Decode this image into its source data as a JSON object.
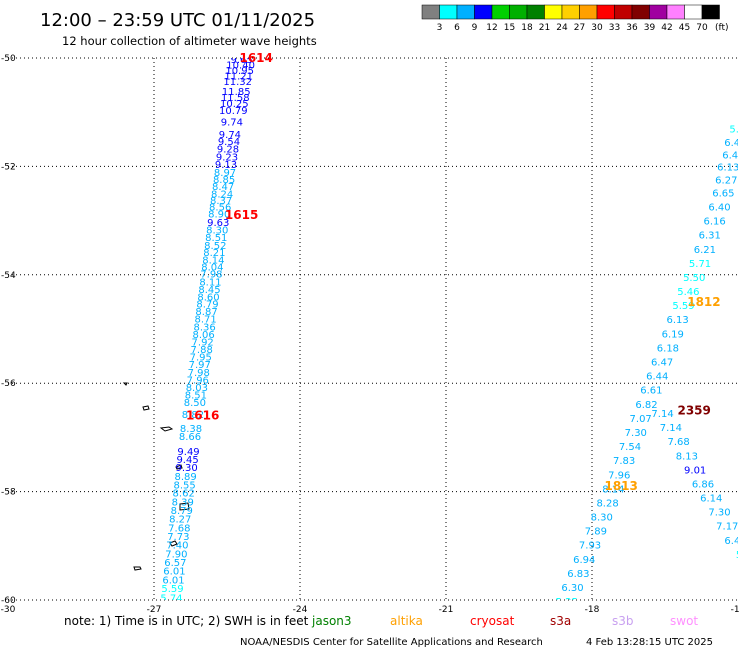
{
  "title": "12:00 – 23:59 UTC 01/11/2025",
  "subtitle": "12 hour collection of altimeter wave heights",
  "colorbar": {
    "labels": [
      "3",
      "6",
      "9",
      "12",
      "15",
      "18",
      "21",
      "24",
      "27",
      "30",
      "33",
      "36",
      "39",
      "42",
      "45",
      "70"
    ],
    "unit": "(ft)",
    "colors": [
      "#808080",
      "#00ffff",
      "#00b0ff",
      "#0000ff",
      "#00d000",
      "#00b000",
      "#008000",
      "#ffff00",
      "#ffd000",
      "#ffa000",
      "#ff0000",
      "#c00000",
      "#800000",
      "#a000a0",
      "#ff80ff",
      "#ffffff",
      "#000000"
    ]
  },
  "note": "note: 1) Time is in UTC; 2) SWH is in feet",
  "credit": "NOAA/NESDIS Center for Satellite Applications and Research",
  "timestamp": "4 Feb 13:28:15 UTC 2025",
  "satellites": [
    {
      "name": "jason3",
      "label": "jason3",
      "color": "#008000"
    },
    {
      "name": "altika",
      "label": "altika",
      "color": "#ffa000"
    },
    {
      "name": "cryosat",
      "label": "cryosat",
      "color": "#ff0000"
    },
    {
      "name": "s3a",
      "label": "s3a",
      "color": "#a00000"
    },
    {
      "name": "s3b",
      "label": "s3b",
      "color": "#c8a0f0"
    },
    {
      "name": "swot",
      "label": "swot",
      "color": "#ff90ff"
    }
  ],
  "chart_data": {
    "type": "scatter",
    "xlim": [
      -30,
      -15
    ],
    "ylim": [
      -60,
      -50
    ],
    "x_ticks": [
      -30,
      -27,
      -24,
      -21,
      -18,
      -15
    ],
    "y_ticks": [
      -50,
      -52,
      -54,
      -56,
      -58,
      -60
    ],
    "x_tick_labels": [
      "-30",
      "-27",
      "-24",
      "-21",
      "-18",
      "-15"
    ],
    "y_tick_labels": [
      "-50",
      "-52",
      "-54",
      "-56",
      "-58",
      "-60"
    ],
    "grid": true,
    "pass_labels": [
      {
        "text": "1614",
        "x": -24.9,
        "y": -50.0,
        "color": "#ff0000"
      },
      {
        "text": "1615",
        "x": -25.2,
        "y": -52.9,
        "color": "#ff0000"
      },
      {
        "text": "1616",
        "x": -26.0,
        "y": -56.6,
        "color": "#ff0000"
      },
      {
        "text": "1812",
        "x": -15.7,
        "y": -54.5,
        "color": "#ffa000"
      },
      {
        "text": "1813",
        "x": -17.4,
        "y": -57.9,
        "color": "#ffa000"
      },
      {
        "text": "2359",
        "x": -15.9,
        "y": -56.5,
        "color": "#800000"
      }
    ],
    "series": [
      {
        "name": "1614/1615/1616",
        "points": [
          {
            "x": -25.2,
            "y": -50.02,
            "v": "9.65",
            "c": "#0000ff"
          },
          {
            "x": -25.22,
            "y": -50.12,
            "v": "10.40",
            "c": "#0000ff"
          },
          {
            "x": -25.24,
            "y": -50.22,
            "v": "10.95",
            "c": "#0000ff"
          },
          {
            "x": -25.26,
            "y": -50.32,
            "v": "11.21",
            "c": "#0000ff"
          },
          {
            "x": -25.28,
            "y": -50.42,
            "v": "11.32",
            "c": "#0000ff"
          },
          {
            "x": -25.31,
            "y": -50.61,
            "v": "11.85",
            "c": "#0000ff"
          },
          {
            "x": -25.33,
            "y": -50.72,
            "v": "11.58",
            "c": "#0000ff"
          },
          {
            "x": -25.35,
            "y": -50.83,
            "v": "10.25",
            "c": "#0000ff"
          },
          {
            "x": -25.37,
            "y": -50.96,
            "v": "10.79",
            "c": "#0000ff"
          },
          {
            "x": -25.4,
            "y": -51.17,
            "v": "9.74",
            "c": "#0000ff"
          },
          {
            "x": -25.44,
            "y": -51.4,
            "v": "9.74",
            "c": "#0000ff"
          },
          {
            "x": -25.46,
            "y": -51.53,
            "v": "9.54",
            "c": "#0000ff"
          },
          {
            "x": -25.48,
            "y": -51.67,
            "v": "9.28",
            "c": "#0000ff"
          },
          {
            "x": -25.5,
            "y": -51.82,
            "v": "9.23",
            "c": "#0000ff"
          },
          {
            "x": -25.52,
            "y": -51.96,
            "v": "9.13",
            "c": "#0000ff"
          },
          {
            "x": -25.54,
            "y": -52.1,
            "v": "8.97",
            "c": "#00b0ff"
          },
          {
            "x": -25.56,
            "y": -52.23,
            "v": "8.85",
            "c": "#00b0ff"
          },
          {
            "x": -25.58,
            "y": -52.36,
            "v": "8.47",
            "c": "#00b0ff"
          },
          {
            "x": -25.6,
            "y": -52.5,
            "v": "8.24",
            "c": "#00b0ff"
          },
          {
            "x": -25.62,
            "y": -52.62,
            "v": "8.37",
            "c": "#00b0ff"
          },
          {
            "x": -25.64,
            "y": -52.74,
            "v": "8.56",
            "c": "#00b0ff"
          },
          {
            "x": -25.66,
            "y": -52.87,
            "v": "8.90",
            "c": "#00b0ff"
          },
          {
            "x": -25.68,
            "y": -53.03,
            "v": "9.63",
            "c": "#0000ff"
          },
          {
            "x": -25.7,
            "y": -53.16,
            "v": "8.30",
            "c": "#00b0ff"
          },
          {
            "x": -25.72,
            "y": -53.3,
            "v": "8.51",
            "c": "#00b0ff"
          },
          {
            "x": -25.74,
            "y": -53.45,
            "v": "8.52",
            "c": "#00b0ff"
          },
          {
            "x": -25.76,
            "y": -53.58,
            "v": "8.21",
            "c": "#00b0ff"
          },
          {
            "x": -25.78,
            "y": -53.72,
            "v": "8.14",
            "c": "#00b0ff"
          },
          {
            "x": -25.8,
            "y": -53.85,
            "v": "8.04",
            "c": "#00b0ff"
          },
          {
            "x": -25.82,
            "y": -53.98,
            "v": "7.98",
            "c": "#00b0ff"
          },
          {
            "x": -25.84,
            "y": -54.12,
            "v": "8.11",
            "c": "#00b0ff"
          },
          {
            "x": -25.86,
            "y": -54.26,
            "v": "8.45",
            "c": "#00b0ff"
          },
          {
            "x": -25.88,
            "y": -54.4,
            "v": "8.60",
            "c": "#00b0ff"
          },
          {
            "x": -25.9,
            "y": -54.53,
            "v": "8.79",
            "c": "#00b0ff"
          },
          {
            "x": -25.92,
            "y": -54.67,
            "v": "8.87",
            "c": "#00b0ff"
          },
          {
            "x": -25.94,
            "y": -54.81,
            "v": "8.71",
            "c": "#00b0ff"
          },
          {
            "x": -25.96,
            "y": -54.95,
            "v": "8.36",
            "c": "#00b0ff"
          },
          {
            "x": -25.98,
            "y": -55.09,
            "v": "8.06",
            "c": "#00b0ff"
          },
          {
            "x": -26.0,
            "y": -55.23,
            "v": "7.92",
            "c": "#00b0ff"
          },
          {
            "x": -26.02,
            "y": -55.37,
            "v": "7.88",
            "c": "#00b0ff"
          },
          {
            "x": -26.04,
            "y": -55.51,
            "v": "7.95",
            "c": "#00b0ff"
          },
          {
            "x": -26.06,
            "y": -55.65,
            "v": "7.97",
            "c": "#00b0ff"
          },
          {
            "x": -26.08,
            "y": -55.79,
            "v": "7.98",
            "c": "#00b0ff"
          },
          {
            "x": -26.1,
            "y": -55.93,
            "v": "7.96",
            "c": "#00b0ff"
          },
          {
            "x": -26.12,
            "y": -56.07,
            "v": "8.03",
            "c": "#00b0ff"
          },
          {
            "x": -26.14,
            "y": -56.21,
            "v": "8.51",
            "c": "#00b0ff"
          },
          {
            "x": -26.16,
            "y": -56.35,
            "v": "8.50",
            "c": "#00b0ff"
          },
          {
            "x": -26.2,
            "y": -56.57,
            "v": "8.82",
            "c": "#00b0ff"
          },
          {
            "x": -26.24,
            "y": -56.83,
            "v": "8.38",
            "c": "#00b0ff"
          },
          {
            "x": -26.26,
            "y": -56.97,
            "v": "8.66",
            "c": "#00b0ff"
          },
          {
            "x": -26.29,
            "y": -57.25,
            "v": "9.49",
            "c": "#0000ff"
          },
          {
            "x": -26.31,
            "y": -57.4,
            "v": "9.45",
            "c": "#0000ff"
          },
          {
            "x": -26.33,
            "y": -57.55,
            "v": "9.30",
            "c": "#0000ff"
          },
          {
            "x": -26.35,
            "y": -57.71,
            "v": "8.89",
            "c": "#00b0ff"
          },
          {
            "x": -26.37,
            "y": -57.87,
            "v": "8.55",
            "c": "#00b0ff"
          },
          {
            "x": -26.39,
            "y": -58.02,
            "v": "8.62",
            "c": "#00b0ff"
          },
          {
            "x": -26.41,
            "y": -58.18,
            "v": "8.39",
            "c": "#00b0ff"
          },
          {
            "x": -26.43,
            "y": -58.34,
            "v": "8.79",
            "c": "#00b0ff"
          },
          {
            "x": -26.46,
            "y": -58.5,
            "v": "8.27",
            "c": "#00b0ff"
          },
          {
            "x": -26.48,
            "y": -58.66,
            "v": "7.68",
            "c": "#00b0ff"
          },
          {
            "x": -26.5,
            "y": -58.82,
            "v": "7.73",
            "c": "#00b0ff"
          },
          {
            "x": -26.52,
            "y": -58.98,
            "v": "7.40",
            "c": "#00b0ff"
          },
          {
            "x": -26.54,
            "y": -59.14,
            "v": "7.90",
            "c": "#00b0ff"
          },
          {
            "x": -26.56,
            "y": -59.3,
            "v": "6.57",
            "c": "#00b0ff"
          },
          {
            "x": -26.58,
            "y": -59.46,
            "v": "6.01",
            "c": "#00b0ff"
          },
          {
            "x": -26.6,
            "y": -59.62,
            "v": "6.01",
            "c": "#00b0ff"
          },
          {
            "x": -26.62,
            "y": -59.78,
            "v": "5.59",
            "c": "#00ffff"
          },
          {
            "x": -26.64,
            "y": -59.95,
            "v": "5.74",
            "c": "#00ffff"
          },
          {
            "x": -26.66,
            "y": -60.12,
            "v": "6.65",
            "c": "#00b0ff"
          }
        ]
      },
      {
        "name": "1812/1813",
        "points": [
          {
            "x": -15.08,
            "y": -51.3,
            "v": "5.",
            "c": "#00ffff"
          },
          {
            "x": -15.12,
            "y": -51.55,
            "v": "6.4",
            "c": "#00b0ff"
          },
          {
            "x": -15.16,
            "y": -51.78,
            "v": "6.4",
            "c": "#00b0ff"
          },
          {
            "x": -15.2,
            "y": -52.0,
            "v": "6.13",
            "c": "#00b0ff"
          },
          {
            "x": -15.24,
            "y": -52.24,
            "v": "6.27",
            "c": "#00b0ff"
          },
          {
            "x": -15.3,
            "y": -52.48,
            "v": "6.65",
            "c": "#00b0ff"
          },
          {
            "x": -15.38,
            "y": -52.74,
            "v": "6.40",
            "c": "#00b0ff"
          },
          {
            "x": -15.48,
            "y": -53.0,
            "v": "6.16",
            "c": "#00b0ff"
          },
          {
            "x": -15.58,
            "y": -53.26,
            "v": "6.31",
            "c": "#00b0ff"
          },
          {
            "x": -15.68,
            "y": -53.52,
            "v": "6.21",
            "c": "#00b0ff"
          },
          {
            "x": -15.78,
            "y": -53.78,
            "v": "5.71",
            "c": "#00ffff"
          },
          {
            "x": -15.9,
            "y": -54.04,
            "v": "5.50",
            "c": "#00ffff"
          },
          {
            "x": -16.02,
            "y": -54.3,
            "v": "5.46",
            "c": "#00ffff"
          },
          {
            "x": -16.12,
            "y": -54.56,
            "v": "5.59",
            "c": "#00ffff"
          },
          {
            "x": -16.24,
            "y": -54.82,
            "v": "6.13",
            "c": "#00b0ff"
          },
          {
            "x": -16.34,
            "y": -55.08,
            "v": "6.19",
            "c": "#00b0ff"
          },
          {
            "x": -16.44,
            "y": -55.34,
            "v": "6.18",
            "c": "#00b0ff"
          },
          {
            "x": -16.56,
            "y": -55.6,
            "v": "6.47",
            "c": "#00b0ff"
          },
          {
            "x": -16.66,
            "y": -55.86,
            "v": "6.44",
            "c": "#00b0ff"
          },
          {
            "x": -16.78,
            "y": -56.12,
            "v": "6.61",
            "c": "#00b0ff"
          },
          {
            "x": -16.88,
            "y": -56.38,
            "v": "6.82",
            "c": "#00b0ff"
          },
          {
            "x": -17.0,
            "y": -56.64,
            "v": "7.07",
            "c": "#00b0ff"
          },
          {
            "x": -17.1,
            "y": -56.9,
            "v": "7.30",
            "c": "#00b0ff"
          },
          {
            "x": -17.22,
            "y": -57.16,
            "v": "7.54",
            "c": "#00b0ff"
          },
          {
            "x": -17.34,
            "y": -57.42,
            "v": "7.83",
            "c": "#00b0ff"
          },
          {
            "x": -17.44,
            "y": -57.68,
            "v": "7.96",
            "c": "#00b0ff"
          },
          {
            "x": -17.56,
            "y": -57.94,
            "v": "8.14",
            "c": "#00b0ff"
          },
          {
            "x": -17.68,
            "y": -58.2,
            "v": "8.28",
            "c": "#00b0ff"
          },
          {
            "x": -17.8,
            "y": -58.46,
            "v": "8.30",
            "c": "#00b0ff"
          },
          {
            "x": -17.92,
            "y": -58.72,
            "v": "7.89",
            "c": "#00b0ff"
          },
          {
            "x": -18.04,
            "y": -58.98,
            "v": "7.93",
            "c": "#00b0ff"
          },
          {
            "x": -18.16,
            "y": -59.24,
            "v": "6.94",
            "c": "#00b0ff"
          },
          {
            "x": -18.28,
            "y": -59.5,
            "v": "6.83",
            "c": "#00b0ff"
          },
          {
            "x": -18.4,
            "y": -59.76,
            "v": "6.30",
            "c": "#00b0ff"
          },
          {
            "x": -18.52,
            "y": -60.02,
            "v": "5.25",
            "c": "#00ffff"
          },
          {
            "x": -18.64,
            "y": -60.28,
            "v": "5.16",
            "c": "#00ffff"
          }
        ]
      },
      {
        "name": "2359",
        "points": [
          {
            "x": -16.55,
            "y": -56.55,
            "v": "7.14",
            "c": "#00b0ff"
          },
          {
            "x": -16.38,
            "y": -56.81,
            "v": "7.14",
            "c": "#00b0ff"
          },
          {
            "x": -16.22,
            "y": -57.07,
            "v": "7.68",
            "c": "#00b0ff"
          },
          {
            "x": -16.05,
            "y": -57.33,
            "v": "8.13",
            "c": "#00b0ff"
          },
          {
            "x": -15.88,
            "y": -57.59,
            "v": "9.01",
            "c": "#0000ff"
          },
          {
            "x": -15.72,
            "y": -57.85,
            "v": "6.86",
            "c": "#00b0ff"
          },
          {
            "x": -15.55,
            "y": -58.11,
            "v": "6.14",
            "c": "#00b0ff"
          },
          {
            "x": -15.38,
            "y": -58.37,
            "v": "7.30",
            "c": "#00b0ff"
          },
          {
            "x": -15.22,
            "y": -58.63,
            "v": "7.17",
            "c": "#00b0ff"
          },
          {
            "x": -15.05,
            "y": -58.89,
            "v": "6.40",
            "c": "#00b0ff"
          },
          {
            "x": -14.88,
            "y": -59.15,
            "v": "5.4",
            "c": "#00ffff"
          },
          {
            "x": -14.72,
            "y": -59.41,
            "v": "5.",
            "c": "#00ffff"
          },
          {
            "x": -14.55,
            "y": -59.67,
            "v": "5",
            "c": "#00ffff"
          }
        ]
      }
    ]
  }
}
